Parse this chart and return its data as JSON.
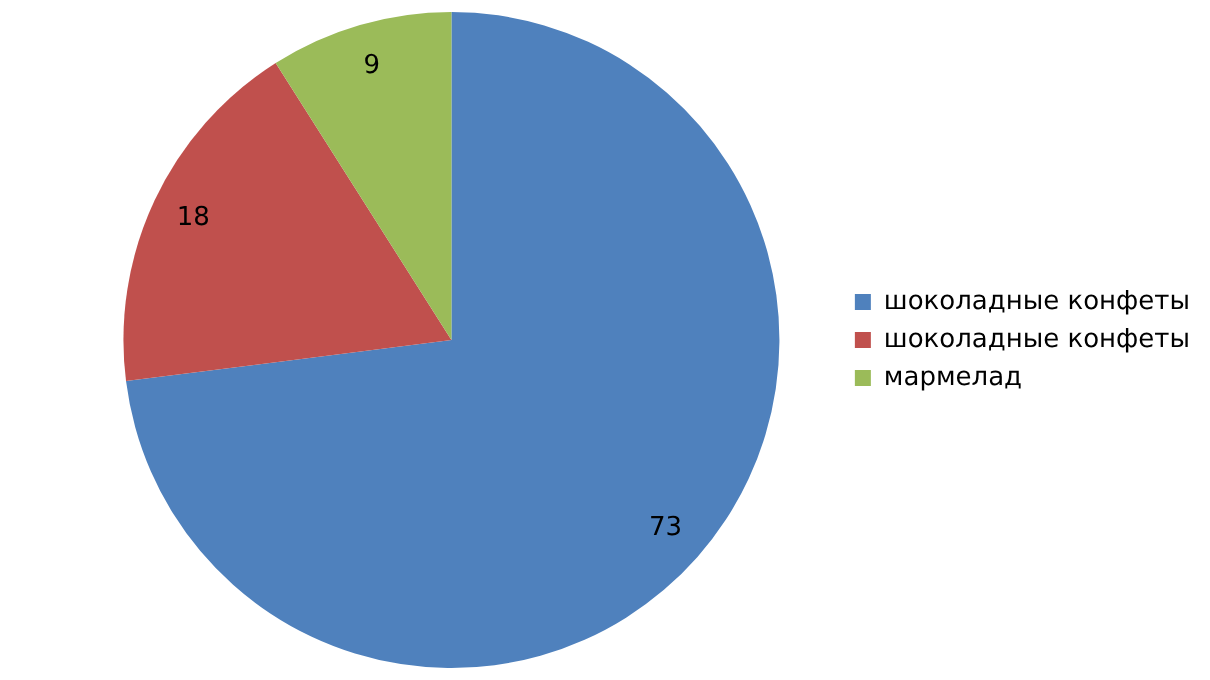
{
  "chart_data": {
    "type": "pie",
    "categories": [
      "шоколадные конфеты",
      "шоколадные конфеты",
      "мармелад"
    ],
    "values": [
      73,
      18,
      9
    ],
    "colors": [
      "#4f81bd",
      "#c0504d",
      "#9bbb59"
    ],
    "data_labels": true,
    "legend": "right"
  }
}
